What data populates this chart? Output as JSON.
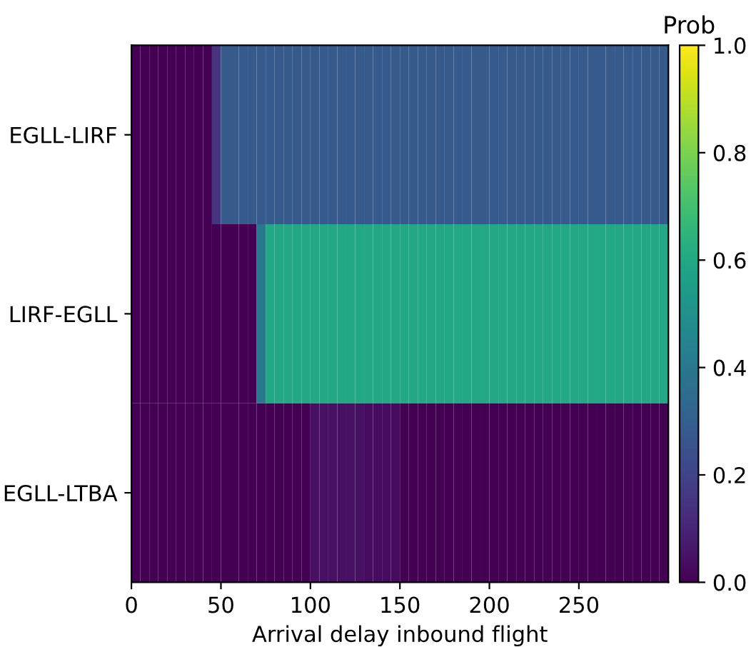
{
  "chart_data": {
    "type": "heatmap",
    "xlabel": "Arrival delay inbound flight",
    "clabel": "Prob",
    "x": [
      2.5,
      7.5,
      12.5,
      17.5,
      22.5,
      27.5,
      32.5,
      37.5,
      42.5,
      47.5,
      52.5,
      57.5,
      62.5,
      67.5,
      72.5,
      77.5,
      82.5,
      87.5,
      92.5,
      97.5,
      102.5,
      107.5,
      112.5,
      117.5,
      122.5,
      127.5,
      132.5,
      137.5,
      142.5,
      147.5,
      152.5,
      157.5,
      162.5,
      167.5,
      172.5,
      177.5,
      182.5,
      187.5,
      192.5,
      197.5,
      202.5,
      207.5,
      212.5,
      217.5,
      222.5,
      227.5,
      232.5,
      237.5,
      242.5,
      247.5,
      252.5,
      257.5,
      262.5,
      267.5,
      272.5,
      277.5,
      282.5,
      287.5,
      292.5,
      297.5
    ],
    "y_categories": [
      "EGLL-LIRF",
      "LIRF-EGLL",
      "EGLL-LTBA"
    ],
    "cells": [
      [
        0,
        0,
        0,
        0,
        0,
        0,
        0,
        0,
        0,
        0.15,
        0.28,
        0.28,
        0.28,
        0.28,
        0.28,
        0.28,
        0.28,
        0.28,
        0.28,
        0.28,
        0.28,
        0.28,
        0.28,
        0.28,
        0.28,
        0.28,
        0.28,
        0.28,
        0.28,
        0.28,
        0.28,
        0.28,
        0.28,
        0.28,
        0.28,
        0.28,
        0.28,
        0.28,
        0.28,
        0.28,
        0.28,
        0.28,
        0.28,
        0.28,
        0.28,
        0.28,
        0.28,
        0.28,
        0.28,
        0.28,
        0.28,
        0.28,
        0.28,
        0.28,
        0.28,
        0.28,
        0.28,
        0.28,
        0.28,
        0.28
      ],
      [
        0,
        0,
        0,
        0,
        0,
        0,
        0,
        0,
        0,
        0,
        0,
        0,
        0,
        0,
        0.4,
        0.6,
        0.6,
        0.6,
        0.6,
        0.6,
        0.6,
        0.6,
        0.6,
        0.6,
        0.6,
        0.6,
        0.6,
        0.6,
        0.6,
        0.6,
        0.6,
        0.6,
        0.6,
        0.6,
        0.6,
        0.6,
        0.6,
        0.6,
        0.6,
        0.6,
        0.6,
        0.6,
        0.6,
        0.6,
        0.6,
        0.6,
        0.6,
        0.6,
        0.6,
        0.6,
        0.6,
        0.6,
        0.6,
        0.6,
        0.6,
        0.6,
        0.6,
        0.6,
        0.6,
        0.6
      ],
      [
        0,
        0,
        0,
        0,
        0,
        0,
        0,
        0,
        0,
        0,
        0,
        0,
        0,
        0,
        0,
        0,
        0,
        0,
        0,
        0,
        0.04,
        0.04,
        0.04,
        0.04,
        0.04,
        0.04,
        0.03,
        0.03,
        0.03,
        0.03,
        0,
        0,
        0,
        0,
        0,
        0,
        0,
        0,
        0,
        0,
        0,
        0,
        0,
        0,
        0,
        0,
        0,
        0,
        0,
        0,
        0,
        0,
        0,
        0,
        0,
        0,
        0,
        0,
        0,
        0
      ]
    ],
    "xlim": [
      0,
      300
    ],
    "xticks": [
      0,
      50,
      100,
      150,
      200,
      250
    ],
    "clim": [
      0,
      1
    ],
    "cticks": [
      {
        "value": 0,
        "label": "0.0"
      },
      {
        "value": 0.2,
        "label": "0.2"
      },
      {
        "value": 0.4,
        "label": "0.4"
      },
      {
        "value": 0.6,
        "label": "0.6"
      },
      {
        "value": 0.8,
        "label": "0.8"
      },
      {
        "value": 1,
        "label": "1.0"
      }
    ]
  }
}
